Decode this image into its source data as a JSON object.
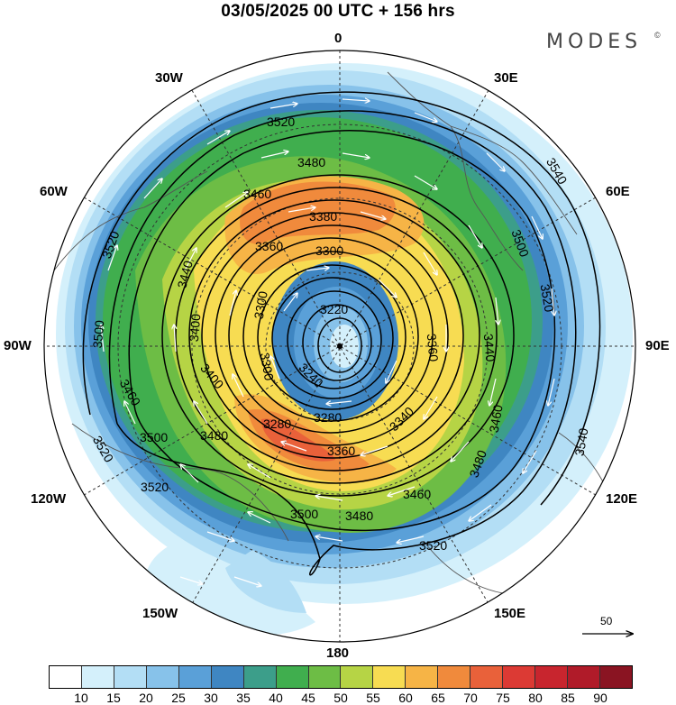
{
  "header": {
    "title": "03/05/2025  00 UTC  + 156 hrs"
  },
  "brand": {
    "name": "MODES",
    "mark": "©"
  },
  "map": {
    "projection": "north polar stereographic",
    "longitude_labels": [
      {
        "id": "0",
        "text": "0"
      },
      {
        "id": "30e",
        "text": "30E"
      },
      {
        "id": "60e",
        "text": "60E"
      },
      {
        "id": "90e",
        "text": "90E"
      },
      {
        "id": "120e",
        "text": "120E"
      },
      {
        "id": "150e",
        "text": "150E"
      },
      {
        "id": "180",
        "text": "180"
      },
      {
        "id": "150w",
        "text": "150W"
      },
      {
        "id": "120w",
        "text": "120W"
      },
      {
        "id": "90w",
        "text": "90W"
      },
      {
        "id": "60w",
        "text": "60W"
      },
      {
        "id": "30w",
        "text": "30W"
      }
    ],
    "contour_labels": [
      "3540",
      "3520",
      "3500",
      "3480",
      "3460",
      "3440",
      "3400",
      "3380",
      "3360",
      "3340",
      "3300",
      "3280",
      "3240",
      "3220"
    ],
    "vector_reference": "50"
  },
  "colorbar": {
    "colors": [
      "#ffffff",
      "#d4f0fb",
      "#b3def5",
      "#87c2ea",
      "#5aa0d8",
      "#3f86c2",
      "#3c9e8a",
      "#40ae4e",
      "#6dbd45",
      "#b6d445",
      "#f7dc52",
      "#f6b446",
      "#f08a3c",
      "#e9613a",
      "#dc3a34",
      "#c8252e",
      "#b01b29",
      "#8a1422"
    ],
    "tick_labels": [
      "10",
      "15",
      "20",
      "25",
      "30",
      "35",
      "40",
      "45",
      "50",
      "55",
      "60",
      "65",
      "70",
      "75",
      "80",
      "85",
      "90"
    ]
  }
}
